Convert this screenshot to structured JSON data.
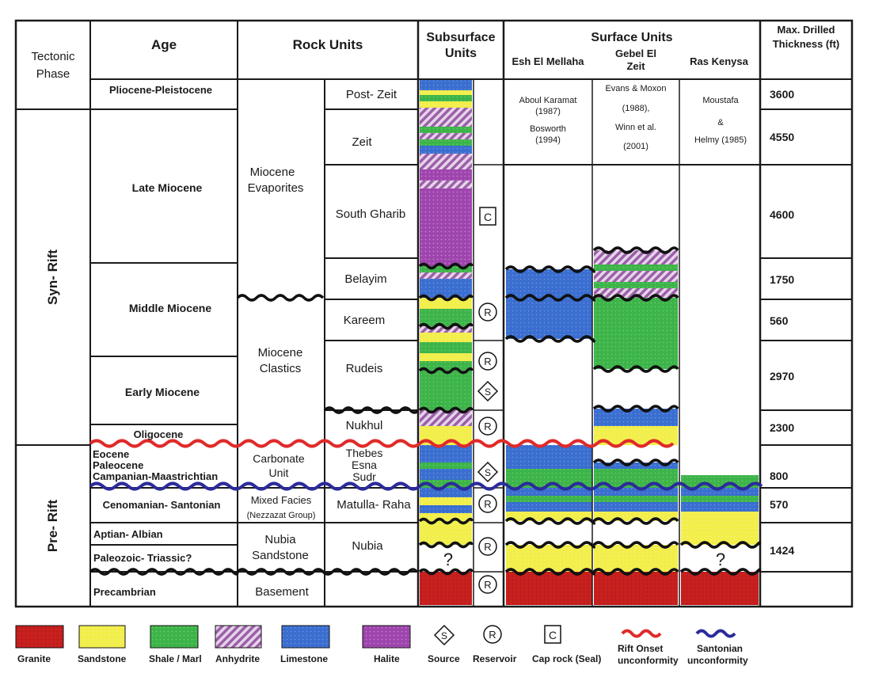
{
  "headers": {
    "tectonic": [
      "Tectonic",
      "Phase"
    ],
    "age": "Age",
    "rock_units": "Rock Units",
    "subsurface": [
      "Subsurface",
      "Units"
    ],
    "surface": "Surface Units",
    "surface_sub": {
      "esh": "Esh El Mellaha",
      "gebel": [
        "Gebel El",
        "Zeit"
      ],
      "ras": "Ras Kenysa"
    },
    "thickness": [
      "Max. Drilled",
      "Thickness (ft)"
    ]
  },
  "phases": {
    "syn": "Syn- Rift",
    "pre": "Pre- Rift"
  },
  "ages": {
    "plio": "Pliocene-Pleistocene",
    "late": "Late Miocene",
    "middle": "Middle Miocene",
    "early": "Early Miocene",
    "oligo": "Oligocene",
    "eocene": "Eocene",
    "paleo": "Paleocene",
    "camp": "Campanian-Maastrichtian",
    "ceno": "Cenomanian- Santonian",
    "aptian": "Aptian- Albian",
    "paleoz": "Paleozoic- Triassic?",
    "precamb": "Precambrian"
  },
  "rock_units": {
    "evaporites": [
      "Miocene",
      "Evaporites"
    ],
    "clastics": [
      "Miocene",
      "Clastics"
    ],
    "carbonate": [
      "Carbonate",
      "Unit"
    ],
    "mixed": [
      "Mixed Facies",
      "(Nezzazat Group)"
    ],
    "nubia": [
      "Nubia",
      "Sandstone"
    ],
    "basement": "Basement"
  },
  "formations": {
    "post_zeit": "Post- Zeit",
    "zeit": "Zeit",
    "south_gharib": "South Gharib",
    "belayim": "Belayim",
    "kareem": "Kareem",
    "rudeis": "Rudeis",
    "nukhul": "Nukhul",
    "thebes": "Thebes",
    "esna": "Esna",
    "sudr": "Sudr",
    "matulla": "Matulla- Raha",
    "nubia": "Nubia"
  },
  "references": {
    "esh": [
      "Aboul Karamat",
      "(1987)",
      "Bosworth",
      "(1994)"
    ],
    "gebel": [
      "Evans & Moxon",
      "(1988),",
      "Winn et al.",
      "(2001)"
    ],
    "ras": [
      "Moustafa",
      "&",
      "Helmy   (1985)"
    ]
  },
  "thickness": {
    "plio": "3600",
    "zeit": "4550",
    "south_gharib": "4600",
    "belayim": "1750",
    "kareem": "560",
    "rudeis": "2970",
    "nukhul": "2300",
    "carbonate": "800",
    "matulla": "570",
    "nubia": "1424"
  },
  "symbols": {
    "cap": "C",
    "reservoir": "R",
    "source": "S",
    "unknown": "?"
  },
  "legend": {
    "granite": "Granite",
    "sandstone": "Sandstone",
    "shale": "Shale / Marl",
    "anhydrite": "Anhydrite",
    "limestone": "Limestone",
    "halite": "Halite",
    "source": "Source",
    "reservoir": "Reservoir",
    "caprock": "Cap rock (Seal)",
    "rift": [
      "Rift Onset",
      "unconformity"
    ],
    "santonian": [
      "Santonian",
      "unconformity"
    ]
  },
  "colors": {
    "granite": "#c8201f",
    "sandstone": "#f2ee4a",
    "shale": "#3fb34a",
    "anhydrite": "#a86fb2",
    "limestone": "#3b6fcc",
    "halite": "#9e3fa8",
    "rift_line": "#e02a2a",
    "santonian_line": "#2b2b9a"
  }
}
